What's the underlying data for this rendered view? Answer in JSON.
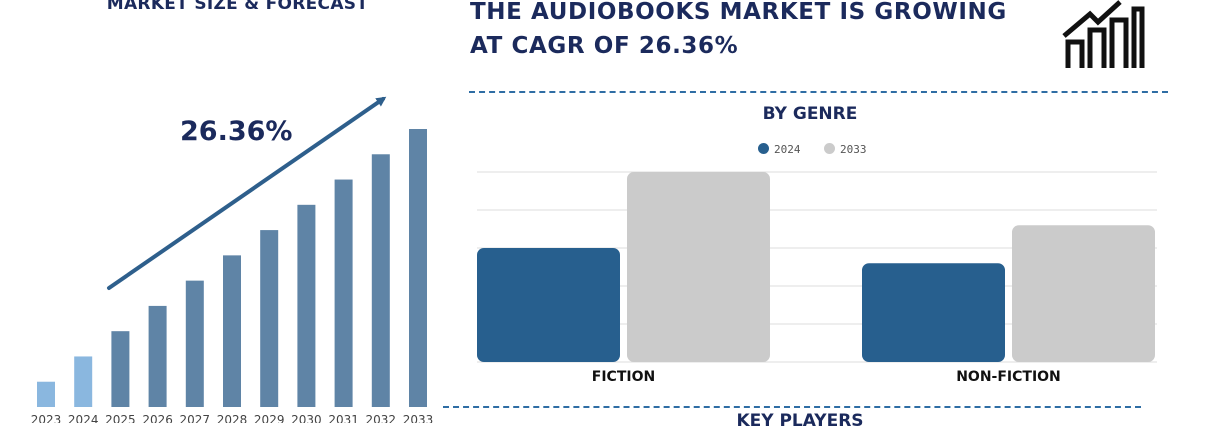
{
  "left_panel": {
    "title": "MARKET SIZE & FORECAST",
    "cagr_label": "26.36%"
  },
  "headline": {
    "line1": "THE AUDIOBOOKS MARKET IS GROWING",
    "line2": "AT CAGR OF 26.36%"
  },
  "icons": {
    "growth": "bar-growth-arrow-icon"
  },
  "genre_panel": {
    "title": "BY GENRE",
    "legend": [
      {
        "label": "2024",
        "color": "#275f8e"
      },
      {
        "label": "2033",
        "color": "#cbcbcb"
      }
    ]
  },
  "key_players": {
    "title": "KEY PLAYERS"
  },
  "colors": {
    "navy": "#1b2a5c",
    "bar_light": "#8ab7df",
    "bar_main": "#5f84a6",
    "arrow": "#2e5f8c",
    "dash": "#2e6da4"
  },
  "chart_data": [
    {
      "type": "bar",
      "title": "MARKET SIZE & FORECAST",
      "categories": [
        "2023",
        "2024",
        "2025",
        "2026",
        "2027",
        "2028",
        "2029",
        "2030",
        "2031",
        "2032",
        "2033"
      ],
      "values": [
        1.0,
        2.0,
        3.0,
        4.0,
        5.0,
        6.0,
        7.0,
        8.0,
        9.0,
        10.0,
        11.0
      ],
      "highlighted_categories": [
        "2023",
        "2024"
      ],
      "annotation": "26.36%",
      "ylim": [
        0,
        11
      ],
      "grid": false
    },
    {
      "type": "bar",
      "title": "BY GENRE",
      "categories": [
        "FICTION",
        "NON-FICTION"
      ],
      "series": [
        {
          "name": "2024",
          "values": [
            3.0,
            2.6
          ]
        },
        {
          "name": "2033",
          "values": [
            5.0,
            3.6
          ]
        }
      ],
      "ylim": [
        0,
        5
      ],
      "grid": true,
      "legend": "top-center"
    }
  ]
}
